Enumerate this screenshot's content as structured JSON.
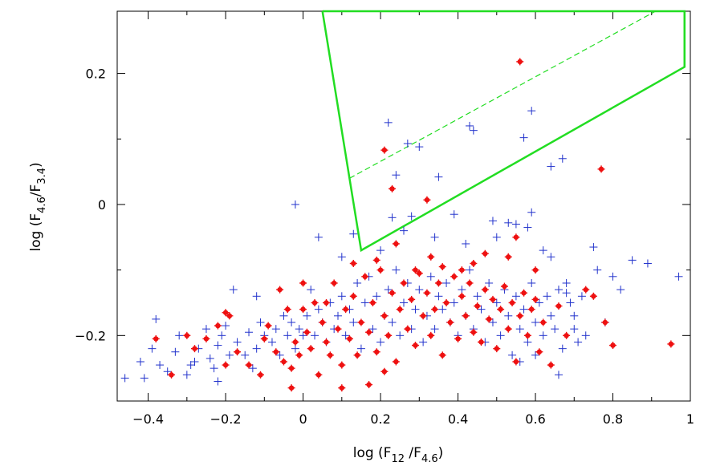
{
  "chart_data": {
    "type": "scatter",
    "xlabel": {
      "prefix": "log (F",
      "sub1": "12",
      "mid": " /F",
      "sub2": "4.6",
      "suffix": ")"
    },
    "ylabel": {
      "prefix": "log (F",
      "sub1": "4.6",
      "mid": "/F",
      "sub2": "3.4",
      "suffix": ")"
    },
    "xlim": [
      -0.48,
      1.0
    ],
    "ylim": [
      -0.3,
      0.295
    ],
    "x_ticks": [
      -0.4,
      -0.2,
      0,
      0.2,
      0.4,
      0.6,
      0.8,
      1
    ],
    "x_tick_labels": [
      "−0.4",
      "−0.2",
      "0",
      "0.2",
      "0.4",
      "0.6",
      "0.8",
      "1"
    ],
    "y_ticks": [
      -0.2,
      0,
      0.2
    ],
    "y_tick_labels": [
      "−0.2",
      "0",
      "0.2"
    ],
    "colors": {
      "box": "#22dd22",
      "cross": "#2233cc",
      "dot": "#ee1111"
    },
    "region": {
      "name": "selection box",
      "outline": [
        [
          0.05,
          0.295
        ],
        [
          0.985,
          0.295
        ],
        [
          0.985,
          0.21
        ],
        [
          0.15,
          -0.07
        ],
        [
          0.05,
          0.295
        ]
      ],
      "dashed_line": [
        [
          0.12,
          0.04
        ],
        [
          0.91,
          0.295
        ]
      ]
    },
    "series": [
      {
        "name": "crosses",
        "marker": "plus",
        "points": [
          [
            -0.46,
            -0.265
          ],
          [
            -0.41,
            -0.265
          ],
          [
            -0.42,
            -0.24
          ],
          [
            -0.39,
            -0.22
          ],
          [
            -0.38,
            -0.175
          ],
          [
            -0.37,
            -0.245
          ],
          [
            -0.35,
            -0.255
          ],
          [
            -0.33,
            -0.225
          ],
          [
            -0.32,
            -0.2
          ],
          [
            -0.3,
            -0.26
          ],
          [
            -0.29,
            -0.245
          ],
          [
            -0.28,
            -0.24
          ],
          [
            -0.27,
            -0.22
          ],
          [
            -0.25,
            -0.19
          ],
          [
            -0.24,
            -0.235
          ],
          [
            -0.23,
            -0.25
          ],
          [
            -0.22,
            -0.215
          ],
          [
            -0.21,
            -0.2
          ],
          [
            -0.2,
            -0.185
          ],
          [
            -0.19,
            -0.23
          ],
          [
            -0.18,
            -0.13
          ],
          [
            -0.17,
            -0.21
          ],
          [
            -0.15,
            -0.23
          ],
          [
            -0.14,
            -0.195
          ],
          [
            -0.13,
            -0.25
          ],
          [
            -0.12,
            -0.22
          ],
          [
            -0.11,
            -0.18
          ],
          [
            -0.1,
            -0.2
          ],
          [
            -0.08,
            -0.21
          ],
          [
            -0.07,
            -0.19
          ],
          [
            -0.06,
            -0.23
          ],
          [
            -0.05,
            -0.17
          ],
          [
            -0.04,
            -0.2
          ],
          [
            -0.03,
            -0.18
          ],
          [
            -0.02,
            -0.22
          ],
          [
            -0.01,
            -0.19
          ],
          [
            0,
            -0.2
          ],
          [
            0.01,
            -0.17
          ],
          [
            0.02,
            -0.13
          ],
          [
            0.03,
            -0.2
          ],
          [
            0.04,
            -0.16
          ],
          [
            0.05,
            -0.18
          ],
          [
            0.06,
            -0.21
          ],
          [
            0.07,
            -0.15
          ],
          [
            0.08,
            -0.19
          ],
          [
            0.09,
            -0.17
          ],
          [
            0.1,
            -0.14
          ],
          [
            0.11,
            -0.2
          ],
          [
            0.12,
            -0.16
          ],
          [
            0.13,
            -0.18
          ],
          [
            0.14,
            -0.12
          ],
          [
            0.15,
            -0.22
          ],
          [
            0.16,
            -0.15
          ],
          [
            0.17,
            -0.11
          ],
          [
            0.18,
            -0.19
          ],
          [
            0.19,
            -0.14
          ],
          [
            0.2,
            -0.21
          ],
          [
            0.21,
            -0.17
          ],
          [
            0.22,
            -0.13
          ],
          [
            0.23,
            -0.18
          ],
          [
            0.24,
            -0.1
          ],
          [
            0.25,
            -0.2
          ],
          [
            0.26,
            -0.15
          ],
          [
            0.27,
            -0.12
          ],
          [
            0.28,
            -0.19
          ],
          [
            0.29,
            -0.16
          ],
          [
            0.3,
            -0.13
          ],
          [
            0.31,
            -0.21
          ],
          [
            0.32,
            -0.17
          ],
          [
            0.33,
            -0.11
          ],
          [
            0.34,
            -0.19
          ],
          [
            0.35,
            -0.14
          ],
          [
            0.36,
            -0.16
          ],
          [
            0.37,
            -0.12
          ],
          [
            0.38,
            -0.18
          ],
          [
            0.39,
            -0.15
          ],
          [
            0.4,
            -0.2
          ],
          [
            0.41,
            -0.13
          ],
          [
            0.42,
            -0.17
          ],
          [
            0.43,
            -0.1
          ],
          [
            0.44,
            -0.19
          ],
          [
            0.45,
            -0.14
          ],
          [
            0.46,
            -0.16
          ],
          [
            0.47,
            -0.21
          ],
          [
            0.48,
            -0.12
          ],
          [
            0.49,
            -0.18
          ],
          [
            0.5,
            -0.15
          ],
          [
            0.51,
            -0.2
          ],
          [
            0.52,
            -0.13
          ],
          [
            0.53,
            -0.17
          ],
          [
            0.54,
            -0.23
          ],
          [
            0.55,
            -0.14
          ],
          [
            0.56,
            -0.19
          ],
          [
            0.57,
            -0.16
          ],
          [
            0.58,
            -0.21
          ],
          [
            0.59,
            -0.12
          ],
          [
            0.6,
            -0.18
          ],
          [
            0.61,
            -0.15
          ],
          [
            0.62,
            -0.2
          ],
          [
            0.63,
            -0.14
          ],
          [
            0.64,
            -0.17
          ],
          [
            0.65,
            -0.19
          ],
          [
            0.66,
            -0.13
          ],
          [
            0.67,
            -0.22
          ],
          [
            0.68,
            -0.12
          ],
          [
            0.69,
            -0.15
          ],
          [
            0.7,
            -0.17
          ],
          [
            0.72,
            -0.14
          ],
          [
            0.75,
            -0.065
          ],
          [
            0.76,
            -0.1
          ],
          [
            0.78,
            -0.18
          ],
          [
            0.8,
            -0.11
          ],
          [
            0.82,
            -0.13
          ],
          [
            0.85,
            -0.085
          ],
          [
            0.89,
            -0.09
          ],
          [
            0.97,
            -0.11
          ],
          [
            0.7,
            -0.19
          ],
          [
            0.71,
            -0.21
          ],
          [
            0.73,
            -0.2
          ],
          [
            0.64,
            -0.08
          ],
          [
            0.68,
            -0.135
          ],
          [
            0.6,
            -0.23
          ],
          [
            0.56,
            -0.24
          ],
          [
            0.66,
            -0.26
          ],
          [
            0.58,
            -0.035
          ],
          [
            -0.02,
            0.0
          ],
          [
            0.04,
            -0.05
          ],
          [
            0.22,
            0.125
          ],
          [
            0.27,
            0.093
          ],
          [
            0.3,
            0.088
          ],
          [
            0.24,
            0.045
          ],
          [
            0.35,
            0.042
          ],
          [
            0.43,
            0.12
          ],
          [
            0.44,
            0.113
          ],
          [
            0.57,
            0.102
          ],
          [
            0.59,
            0.143
          ],
          [
            0.64,
            0.058
          ],
          [
            0.67,
            0.07
          ],
          [
            0.23,
            -0.02
          ],
          [
            0.28,
            -0.018
          ],
          [
            0.39,
            -0.015
          ],
          [
            0.49,
            -0.025
          ],
          [
            0.53,
            -0.028
          ],
          [
            0.59,
            -0.012
          ],
          [
            0.2,
            -0.07
          ],
          [
            0.34,
            -0.05
          ],
          [
            0.42,
            -0.06
          ],
          [
            0.55,
            -0.03
          ],
          [
            0.13,
            -0.045
          ],
          [
            0.26,
            -0.04
          ],
          [
            0.5,
            -0.05
          ],
          [
            0.62,
            -0.07
          ],
          [
            0.1,
            -0.08
          ],
          [
            -0.12,
            -0.14
          ],
          [
            -0.22,
            -0.27
          ]
        ]
      },
      {
        "name": "dots",
        "marker": "star",
        "points": [
          [
            -0.38,
            -0.205
          ],
          [
            -0.34,
            -0.26
          ],
          [
            -0.3,
            -0.2
          ],
          [
            -0.28,
            -0.22
          ],
          [
            -0.25,
            -0.205
          ],
          [
            -0.22,
            -0.185
          ],
          [
            -0.2,
            -0.245
          ],
          [
            -0.2,
            -0.165
          ],
          [
            -0.19,
            -0.17
          ],
          [
            -0.17,
            -0.225
          ],
          [
            -0.14,
            -0.245
          ],
          [
            -0.11,
            -0.26
          ],
          [
            -0.1,
            -0.205
          ],
          [
            -0.09,
            -0.185
          ],
          [
            -0.07,
            -0.225
          ],
          [
            -0.05,
            -0.24
          ],
          [
            -0.04,
            -0.16
          ],
          [
            -0.03,
            -0.25
          ],
          [
            -0.02,
            -0.21
          ],
          [
            -0.01,
            -0.23
          ],
          [
            0.0,
            -0.16
          ],
          [
            0.01,
            -0.195
          ],
          [
            0.02,
            -0.22
          ],
          [
            0.03,
            -0.15
          ],
          [
            0.04,
            -0.26
          ],
          [
            0.05,
            -0.18
          ],
          [
            0.06,
            -0.21
          ],
          [
            0.07,
            -0.23
          ],
          [
            0.08,
            -0.12
          ],
          [
            0.09,
            -0.19
          ],
          [
            0.1,
            -0.245
          ],
          [
            0.11,
            -0.16
          ],
          [
            0.12,
            -0.205
          ],
          [
            0.13,
            -0.14
          ],
          [
            0.14,
            -0.23
          ],
          [
            0.15,
            -0.18
          ],
          [
            0.16,
            -0.11
          ],
          [
            0.17,
            -0.195
          ],
          [
            0.18,
            -0.15
          ],
          [
            0.19,
            -0.225
          ],
          [
            0.2,
            -0.1
          ],
          [
            0.21,
            -0.17
          ],
          [
            0.22,
            -0.2
          ],
          [
            0.23,
            -0.135
          ],
          [
            0.24,
            -0.24
          ],
          [
            0.25,
            -0.16
          ],
          [
            0.26,
            -0.12
          ],
          [
            0.27,
            -0.19
          ],
          [
            0.28,
            -0.145
          ],
          [
            0.29,
            -0.215
          ],
          [
            0.3,
            -0.105
          ],
          [
            0.31,
            -0.17
          ],
          [
            0.32,
            -0.135
          ],
          [
            0.33,
            -0.2
          ],
          [
            0.34,
            -0.16
          ],
          [
            0.35,
            -0.12
          ],
          [
            0.36,
            -0.23
          ],
          [
            0.37,
            -0.15
          ],
          [
            0.38,
            -0.18
          ],
          [
            0.39,
            -0.11
          ],
          [
            0.4,
            -0.205
          ],
          [
            0.41,
            -0.14
          ],
          [
            0.42,
            -0.17
          ],
          [
            0.43,
            -0.12
          ],
          [
            0.44,
            -0.195
          ],
          [
            0.45,
            -0.155
          ],
          [
            0.46,
            -0.21
          ],
          [
            0.47,
            -0.13
          ],
          [
            0.48,
            -0.175
          ],
          [
            0.49,
            -0.145
          ],
          [
            0.5,
            -0.22
          ],
          [
            0.51,
            -0.16
          ],
          [
            0.52,
            -0.125
          ],
          [
            0.53,
            -0.19
          ],
          [
            0.54,
            -0.15
          ],
          [
            0.55,
            -0.24
          ],
          [
            0.56,
            -0.17
          ],
          [
            0.57,
            -0.135
          ],
          [
            0.58,
            -0.2
          ],
          [
            0.59,
            -0.16
          ],
          [
            0.6,
            -0.145
          ],
          [
            0.61,
            -0.225
          ],
          [
            0.62,
            -0.18
          ],
          [
            0.64,
            -0.245
          ],
          [
            0.66,
            -0.155
          ],
          [
            0.68,
            -0.2
          ],
          [
            0.73,
            -0.13
          ],
          [
            0.75,
            -0.14
          ],
          [
            0.78,
            -0.18
          ],
          [
            0.8,
            -0.215
          ],
          [
            0.95,
            -0.213
          ],
          [
            0.44,
            -0.09
          ],
          [
            0.33,
            -0.08
          ],
          [
            0.24,
            -0.06
          ],
          [
            0.19,
            -0.085
          ],
          [
            0.17,
            -0.275
          ],
          [
            0.1,
            -0.28
          ],
          [
            -0.03,
            -0.28
          ],
          [
            0.21,
            -0.255
          ],
          [
            0.13,
            -0.09
          ],
          [
            0.56,
            0.218
          ],
          [
            0.21,
            0.083
          ],
          [
            0.23,
            0.024
          ],
          [
            0.32,
            0.007
          ],
          [
            0.77,
            0.054
          ],
          [
            0.41,
            -0.1
          ],
          [
            0.53,
            -0.08
          ],
          [
            0.47,
            -0.075
          ],
          [
            0.29,
            -0.1
          ],
          [
            0.36,
            -0.095
          ],
          [
            0.55,
            -0.05
          ],
          [
            0.6,
            -0.1
          ],
          [
            0.0,
            -0.12
          ],
          [
            -0.06,
            -0.13
          ],
          [
            0.06,
            -0.15
          ]
        ]
      }
    ]
  }
}
